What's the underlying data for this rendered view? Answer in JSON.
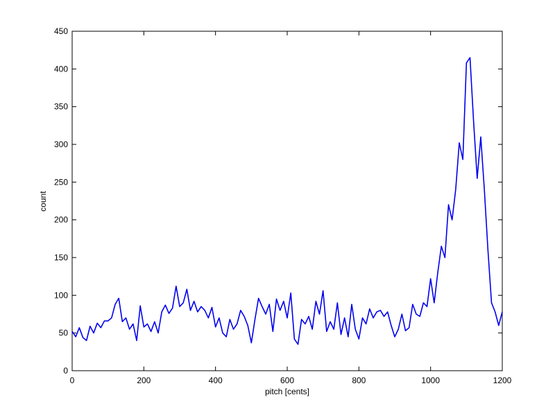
{
  "chart_data": {
    "type": "line",
    "xlabel": "pitch [cents]",
    "ylabel": "count",
    "x": [
      0,
      10,
      20,
      30,
      40,
      50,
      60,
      70,
      80,
      90,
      100,
      110,
      120,
      130,
      140,
      150,
      160,
      170,
      180,
      190,
      200,
      210,
      220,
      230,
      240,
      250,
      260,
      270,
      280,
      290,
      300,
      310,
      320,
      330,
      340,
      350,
      360,
      370,
      380,
      390,
      400,
      410,
      420,
      430,
      440,
      450,
      460,
      470,
      480,
      490,
      500,
      510,
      520,
      530,
      540,
      550,
      560,
      570,
      580,
      590,
      600,
      610,
      620,
      630,
      640,
      650,
      660,
      670,
      680,
      690,
      700,
      710,
      720,
      730,
      740,
      750,
      760,
      770,
      780,
      790,
      800,
      810,
      820,
      830,
      840,
      850,
      860,
      870,
      880,
      890,
      900,
      910,
      920,
      930,
      940,
      950,
      960,
      970,
      980,
      990,
      1000,
      1010,
      1020,
      1030,
      1040,
      1050,
      1060,
      1070,
      1080,
      1090,
      1100,
      1110,
      1120,
      1130,
      1140,
      1150,
      1160,
      1170,
      1180,
      1190,
      1200
    ],
    "series": [
      {
        "color": "#0000ee",
        "values": [
          52,
          45,
          57,
          44,
          40,
          59,
          50,
          63,
          57,
          66,
          66,
          70,
          88,
          96,
          65,
          70,
          55,
          62,
          40,
          86,
          58,
          62,
          52,
          65,
          50,
          78,
          87,
          76,
          83,
          112,
          85,
          90,
          108,
          80,
          92,
          78,
          85,
          80,
          70,
          84,
          58,
          70,
          50,
          45,
          68,
          55,
          62,
          80,
          72,
          60,
          37,
          68,
          96,
          85,
          75,
          88,
          52,
          95,
          80,
          92,
          70,
          103,
          42,
          35,
          68,
          62,
          72,
          55,
          92,
          75,
          106,
          52,
          65,
          55,
          90,
          48,
          70,
          45,
          88,
          55,
          42,
          70,
          62,
          82,
          70,
          78,
          80,
          72,
          78,
          60,
          45,
          55,
          75,
          53,
          57,
          88,
          75,
          72,
          90,
          85,
          122,
          90,
          130,
          165,
          150,
          220,
          200,
          240,
          302,
          280,
          408,
          415,
          330,
          255,
          310,
          240,
          160,
          90,
          78,
          60,
          78
        ]
      }
    ],
    "xlim": [
      0,
      1200
    ],
    "xticks": [
      0,
      200,
      400,
      600,
      800,
      1000,
      1200
    ],
    "ylim": [
      0,
      450
    ],
    "yticks": [
      0,
      50,
      100,
      150,
      200,
      250,
      300,
      350,
      400,
      450
    ]
  }
}
